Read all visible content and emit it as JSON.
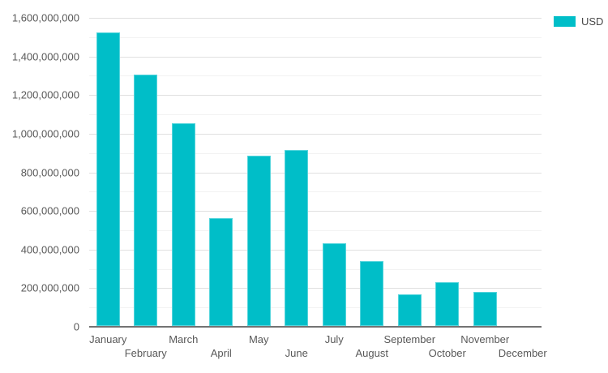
{
  "legend": {
    "label": "USD",
    "swatch_color": "#00bec8",
    "position": "top-right"
  },
  "colors": {
    "bar_fill": "#00bec8",
    "bar_edge": "#55d5dc",
    "axis_line": "#737373",
    "grid_major": "#e0e0e0",
    "grid_minor": "#f2f2f2",
    "tick_text": "#595959"
  },
  "chart_data": {
    "type": "bar",
    "title": "",
    "xlabel": "",
    "ylabel": "",
    "categories": [
      "January",
      "February",
      "March",
      "April",
      "May",
      "June",
      "July",
      "August",
      "September",
      "October",
      "November",
      "December"
    ],
    "series": [
      {
        "name": "USD",
        "values": [
          1520000000,
          1300000000,
          1050000000,
          560000000,
          880000000,
          910000000,
          430000000,
          335000000,
          165000000,
          225000000,
          175000000,
          0
        ]
      }
    ],
    "ylim": [
      0,
      1600000000
    ],
    "y_major_step": 200000000,
    "y_minor_step": 100000000,
    "y_tick_labels": [
      "0",
      "200,000,000",
      "400,000,000",
      "600,000,000",
      "800,000,000",
      "1,000,000,000",
      "1,200,000,000",
      "1,400,000,000",
      "1,600,000,000"
    ],
    "grid": true,
    "x_labels_staggered": true,
    "legend_position": "top-right"
  }
}
